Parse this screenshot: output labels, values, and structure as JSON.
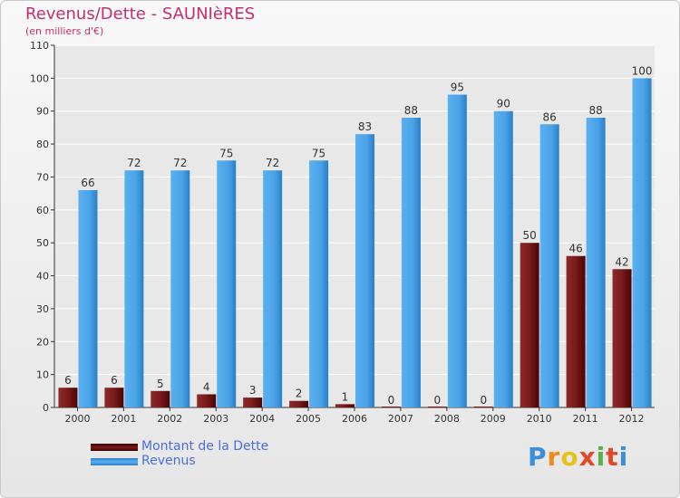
{
  "header": {
    "title": "Revenus/Dette - SAUNIèRES",
    "subtitle": "(en milliers d'€)"
  },
  "logo": {
    "text": "Proxiti"
  },
  "colors": {
    "debt": "#7a1a1a",
    "revenue": "#4aa3e6",
    "axis": "#333333",
    "grid": "#ffffff",
    "accent": "#c03070"
  },
  "chart_data": {
    "type": "bar",
    "categories": [
      "2000",
      "2001",
      "2002",
      "2003",
      "2004",
      "2005",
      "2006",
      "2007",
      "2008",
      "2009",
      "2010",
      "2011",
      "2012"
    ],
    "series": [
      {
        "name": "Montant de la Dette",
        "values": [
          6,
          6,
          5,
          4,
          3,
          2,
          1,
          0,
          0,
          0,
          50,
          46,
          42
        ]
      },
      {
        "name": "Revenus",
        "values": [
          66,
          72,
          72,
          75,
          72,
          75,
          83,
          88,
          95,
          90,
          86,
          88,
          100
        ]
      }
    ],
    "ylim": [
      0,
      110
    ],
    "yticks": [
      0,
      10,
      20,
      30,
      40,
      50,
      60,
      70,
      80,
      90,
      100,
      110
    ],
    "title": "Revenus/Dette - SAUNIèRES",
    "xlabel": "",
    "ylabel": "(en milliers d'€)",
    "grid": true,
    "legend_position": "bottom-left"
  }
}
